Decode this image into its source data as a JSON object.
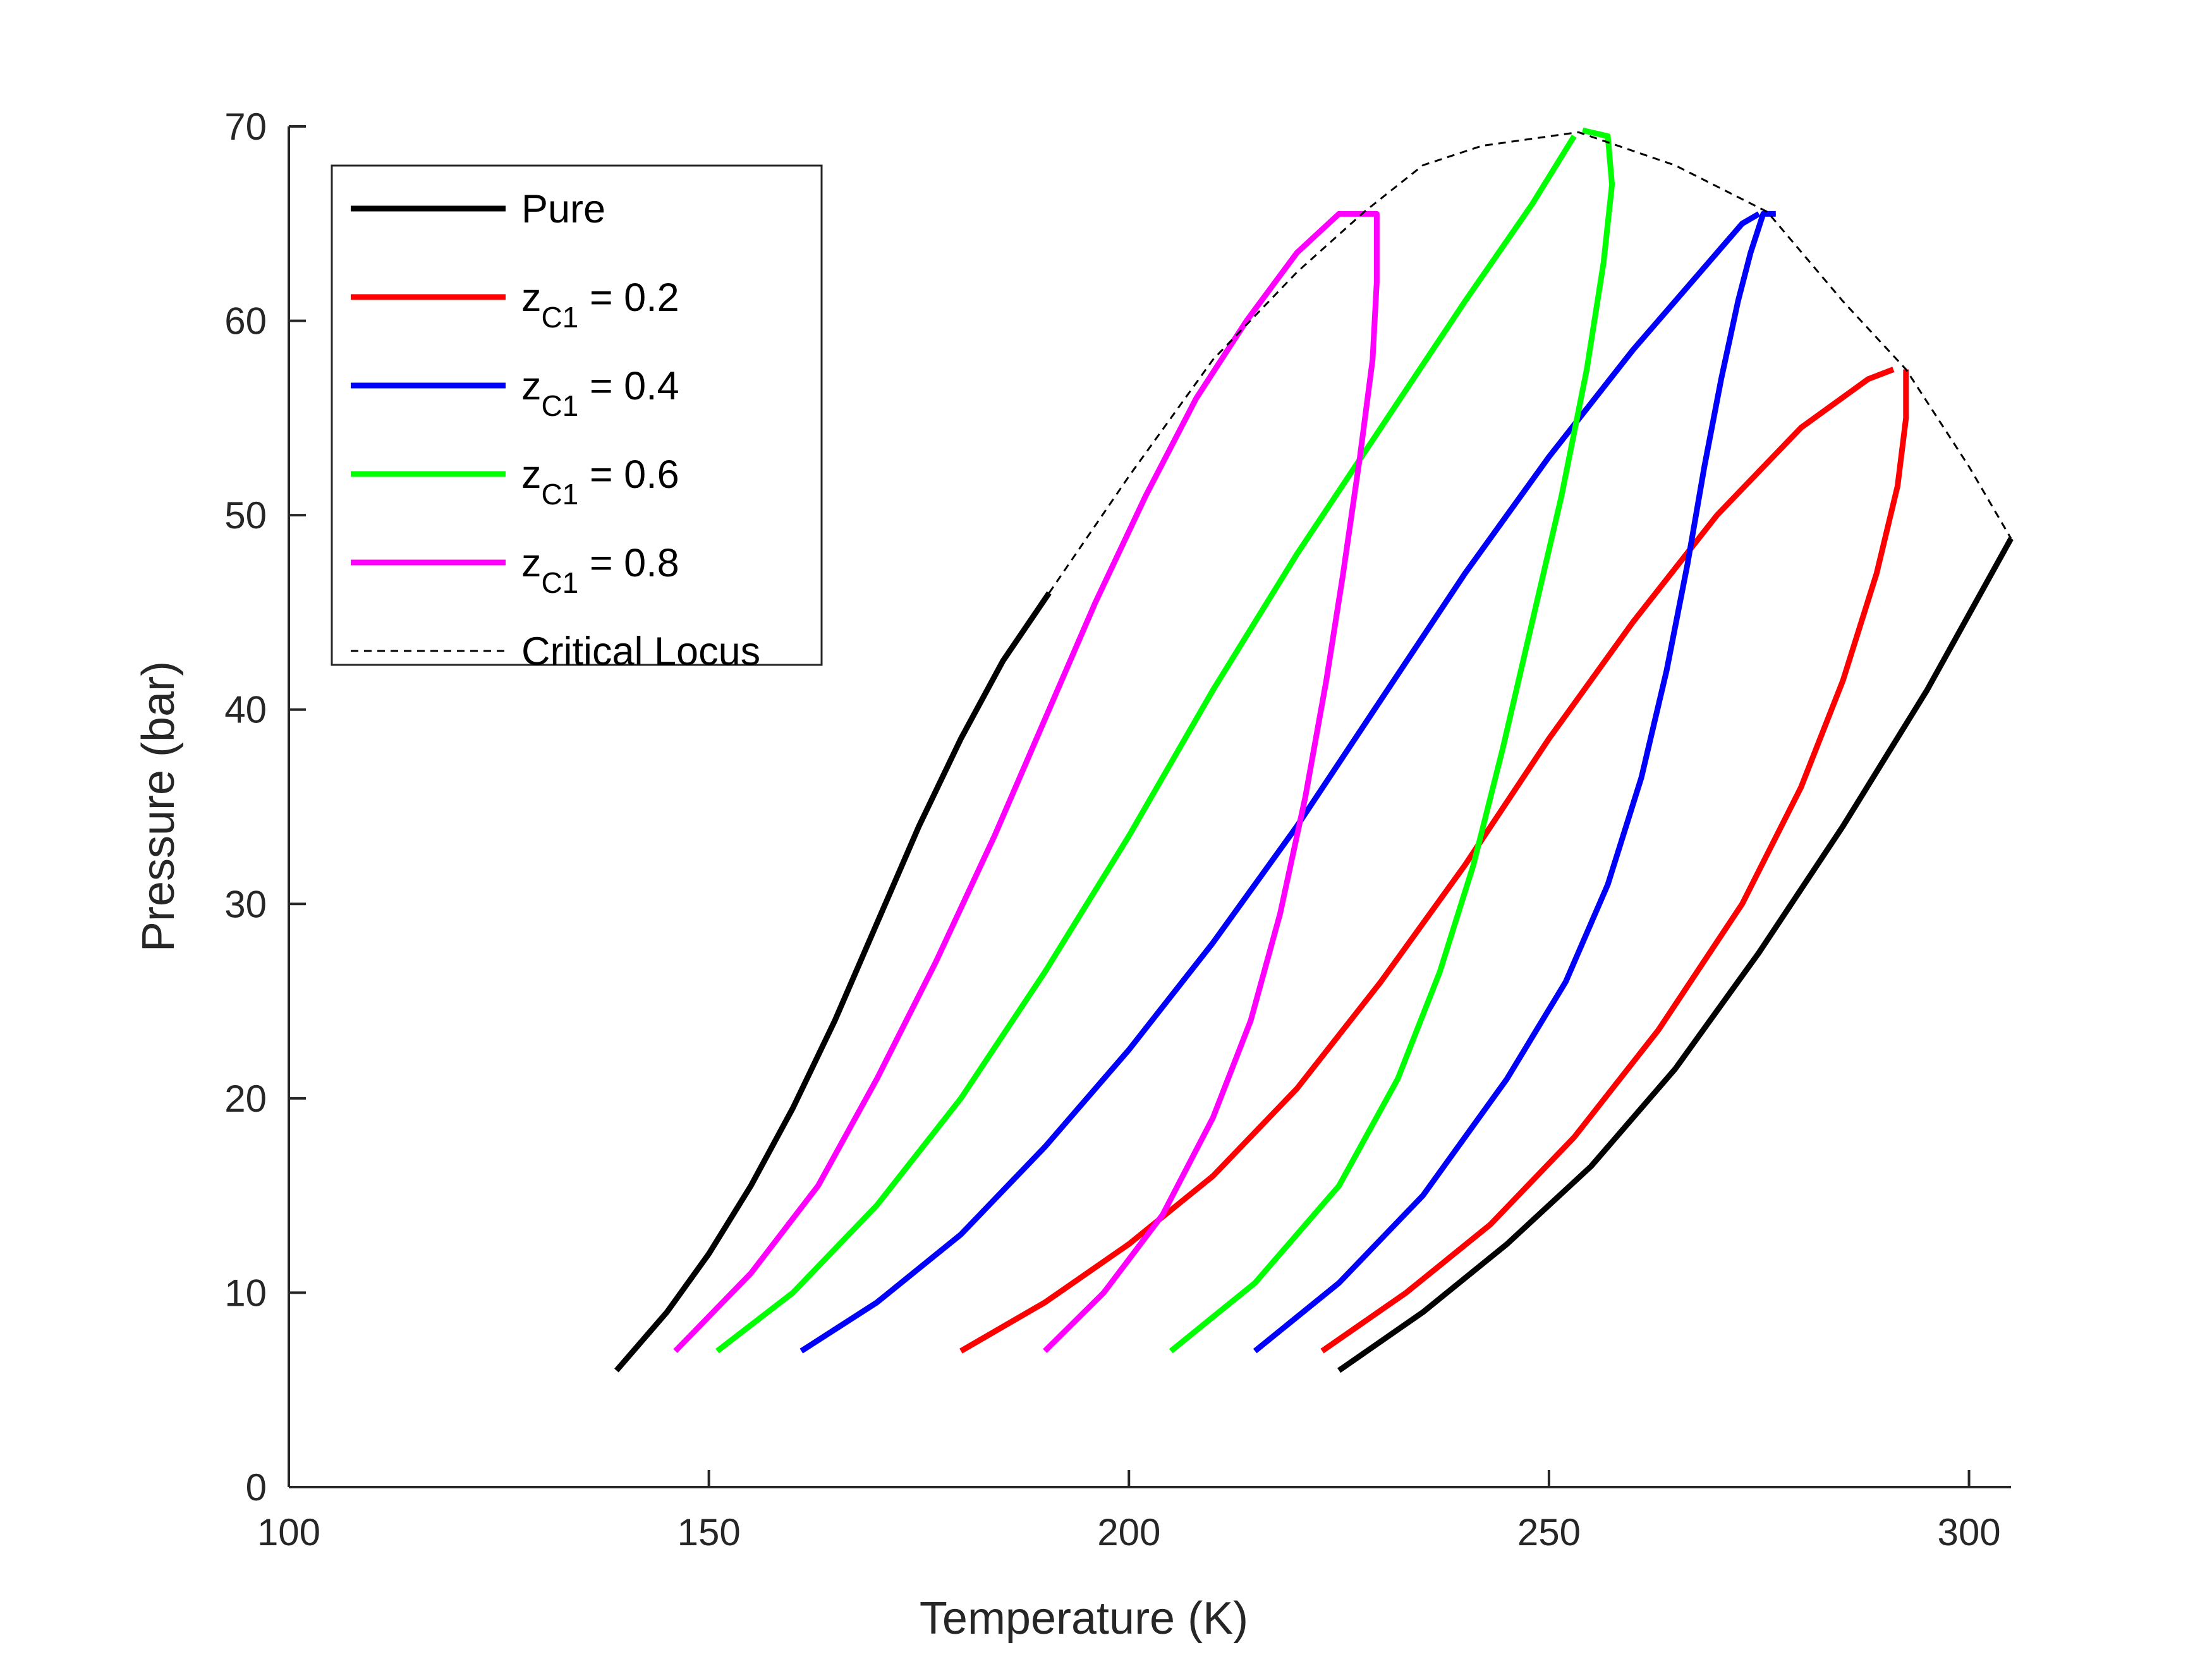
{
  "chart_data": {
    "type": "line",
    "title": "",
    "xlabel": "Temperature (K)",
    "ylabel": "Pressure (bar)",
    "xlim": [
      100,
      305
    ],
    "ylim": [
      0,
      70
    ],
    "xticks": [
      100,
      150,
      200,
      250,
      300
    ],
    "yticks": [
      0,
      10,
      20,
      30,
      40,
      50,
      60,
      70
    ],
    "xtick_labels": [
      "100",
      "150",
      "200",
      "250",
      "300"
    ],
    "ytick_labels": [
      "0",
      "10",
      "20",
      "30",
      "40",
      "50",
      "60",
      "70"
    ],
    "grid": false,
    "legend_position": "top-left",
    "legend": [
      {
        "key": "pure",
        "main": "Pure",
        "sub": "",
        "tail": ""
      },
      {
        "key": "z02",
        "main": "z",
        "sub": "C1",
        "tail": " = 0.2"
      },
      {
        "key": "z04",
        "main": "z",
        "sub": "C1",
        "tail": " = 0.4"
      },
      {
        "key": "z06",
        "main": "z",
        "sub": "C1",
        "tail": " = 0.6"
      },
      {
        "key": "z08",
        "main": "z",
        "sub": "C1",
        "tail": " = 0.8"
      },
      {
        "key": "crit",
        "main": "Critical Locus",
        "sub": "",
        "tail": ""
      }
    ],
    "series": [
      {
        "name": "Pure (C1)",
        "key": "pure",
        "color": "#000000",
        "points": [
          [
            139,
            6
          ],
          [
            145,
            9
          ],
          [
            150,
            12
          ],
          [
            155,
            15.5
          ],
          [
            160,
            19.5
          ],
          [
            165,
            24
          ],
          [
            170,
            29
          ],
          [
            175,
            34
          ],
          [
            180,
            38.5
          ],
          [
            185,
            42.5
          ],
          [
            190.5,
            46
          ]
        ]
      },
      {
        "name": "Pure (C2)",
        "key": "pure",
        "color": "#000000",
        "points": [
          [
            225,
            6
          ],
          [
            235,
            9
          ],
          [
            245,
            12.5
          ],
          [
            255,
            16.5
          ],
          [
            265,
            21.5
          ],
          [
            275,
            27.5
          ],
          [
            285,
            34
          ],
          [
            295,
            41
          ],
          [
            305,
            48.8
          ]
        ]
      },
      {
        "name": "zC1 = 0.2 bubble",
        "key": "z02",
        "color": "#ff0000",
        "points": [
          [
            180,
            7
          ],
          [
            190,
            9.5
          ],
          [
            200,
            12.5
          ],
          [
            210,
            16
          ],
          [
            220,
            20.5
          ],
          [
            230,
            26
          ],
          [
            240,
            32
          ],
          [
            250,
            38.5
          ],
          [
            260,
            44.5
          ],
          [
            270,
            50
          ],
          [
            280,
            54.5
          ],
          [
            288,
            57
          ],
          [
            291,
            57.5
          ]
        ]
      },
      {
        "name": "zC1 = 0.2 dew",
        "key": "z02",
        "color": "#ff0000",
        "points": [
          [
            223,
            7
          ],
          [
            233,
            10
          ],
          [
            243,
            13.5
          ],
          [
            253,
            18
          ],
          [
            263,
            23.5
          ],
          [
            273,
            30
          ],
          [
            280,
            36
          ],
          [
            285,
            41.5
          ],
          [
            289,
            47
          ],
          [
            291.5,
            51.5
          ],
          [
            292.5,
            55
          ],
          [
            292.5,
            57.5
          ]
        ]
      },
      {
        "name": "zC1 = 0.4 bubble",
        "key": "z04",
        "color": "#0000ff",
        "points": [
          [
            161,
            7
          ],
          [
            170,
            9.5
          ],
          [
            180,
            13
          ],
          [
            190,
            17.5
          ],
          [
            200,
            22.5
          ],
          [
            210,
            28
          ],
          [
            220,
            34
          ],
          [
            230,
            40.5
          ],
          [
            240,
            47
          ],
          [
            250,
            53
          ],
          [
            260,
            58.5
          ],
          [
            268,
            62.5
          ],
          [
            273,
            65
          ],
          [
            275,
            65.5
          ]
        ]
      },
      {
        "name": "zC1 = 0.4 dew",
        "key": "z04",
        "color": "#0000ff",
        "points": [
          [
            215,
            7
          ],
          [
            225,
            10.5
          ],
          [
            235,
            15
          ],
          [
            245,
            21
          ],
          [
            252,
            26
          ],
          [
            257,
            31
          ],
          [
            261,
            36.5
          ],
          [
            264,
            42
          ],
          [
            266.5,
            47.5
          ],
          [
            268.5,
            52.5
          ],
          [
            270.5,
            57
          ],
          [
            272.5,
            61
          ],
          [
            274,
            63.5
          ],
          [
            275.5,
            65.5
          ],
          [
            277,
            65.5
          ]
        ]
      },
      {
        "name": "zC1 = 0.6 bubble",
        "key": "z06",
        "color": "#00ff00",
        "points": [
          [
            151,
            7
          ],
          [
            160,
            10
          ],
          [
            170,
            14.5
          ],
          [
            180,
            20
          ],
          [
            190,
            26.5
          ],
          [
            200,
            33.5
          ],
          [
            210,
            41
          ],
          [
            220,
            48
          ],
          [
            230,
            54.5
          ],
          [
            240,
            61
          ],
          [
            248,
            66
          ],
          [
            253,
            69.5
          ]
        ]
      },
      {
        "name": "zC1 = 0.6 dew",
        "key": "z06",
        "color": "#00ff00",
        "points": [
          [
            205,
            7
          ],
          [
            215,
            10.5
          ],
          [
            225,
            15.5
          ],
          [
            232,
            21
          ],
          [
            237,
            26.5
          ],
          [
            241,
            32
          ],
          [
            244.5,
            38
          ],
          [
            248,
            44.5
          ],
          [
            251.5,
            51
          ],
          [
            254.5,
            57.5
          ],
          [
            256.5,
            63
          ],
          [
            257.5,
            67
          ],
          [
            257,
            69.5
          ],
          [
            254,
            69.8
          ]
        ]
      },
      {
        "name": "zC1 = 0.8 bubble",
        "key": "z08",
        "color": "#ff00ff",
        "points": [
          [
            146,
            7
          ],
          [
            155,
            11
          ],
          [
            163,
            15.5
          ],
          [
            170,
            21
          ],
          [
            177,
            27
          ],
          [
            184,
            33.5
          ],
          [
            190,
            39.5
          ],
          [
            196,
            45.5
          ],
          [
            202,
            51
          ],
          [
            208,
            56
          ],
          [
            214,
            60
          ],
          [
            220,
            63.5
          ],
          [
            225,
            65.5
          ],
          [
            228,
            65.5
          ]
        ]
      },
      {
        "name": "zC1 = 0.8 dew",
        "key": "z08",
        "color": "#ff00ff",
        "points": [
          [
            190,
            7
          ],
          [
            197,
            10
          ],
          [
            204,
            14
          ],
          [
            210,
            19
          ],
          [
            214.5,
            24
          ],
          [
            218,
            29.5
          ],
          [
            221,
            35.5
          ],
          [
            223.5,
            41.5
          ],
          [
            225.5,
            47
          ],
          [
            227.5,
            53
          ],
          [
            229,
            58
          ],
          [
            229.5,
            62
          ],
          [
            229.5,
            65.5
          ],
          [
            228,
            65.5
          ]
        ]
      },
      {
        "name": "Critical Locus",
        "key": "crit",
        "color": "#000000",
        "dashed": true,
        "points": [
          [
            190.5,
            46
          ],
          [
            200,
            52
          ],
          [
            210,
            58
          ],
          [
            220,
            62.5
          ],
          [
            228,
            65.6
          ],
          [
            235,
            68
          ],
          [
            242,
            69
          ],
          [
            253.5,
            69.7
          ],
          [
            265,
            68
          ],
          [
            276,
            65.6
          ],
          [
            285,
            61
          ],
          [
            292.5,
            57.5
          ],
          [
            300,
            52.5
          ],
          [
            305,
            48.8
          ]
        ]
      }
    ]
  }
}
